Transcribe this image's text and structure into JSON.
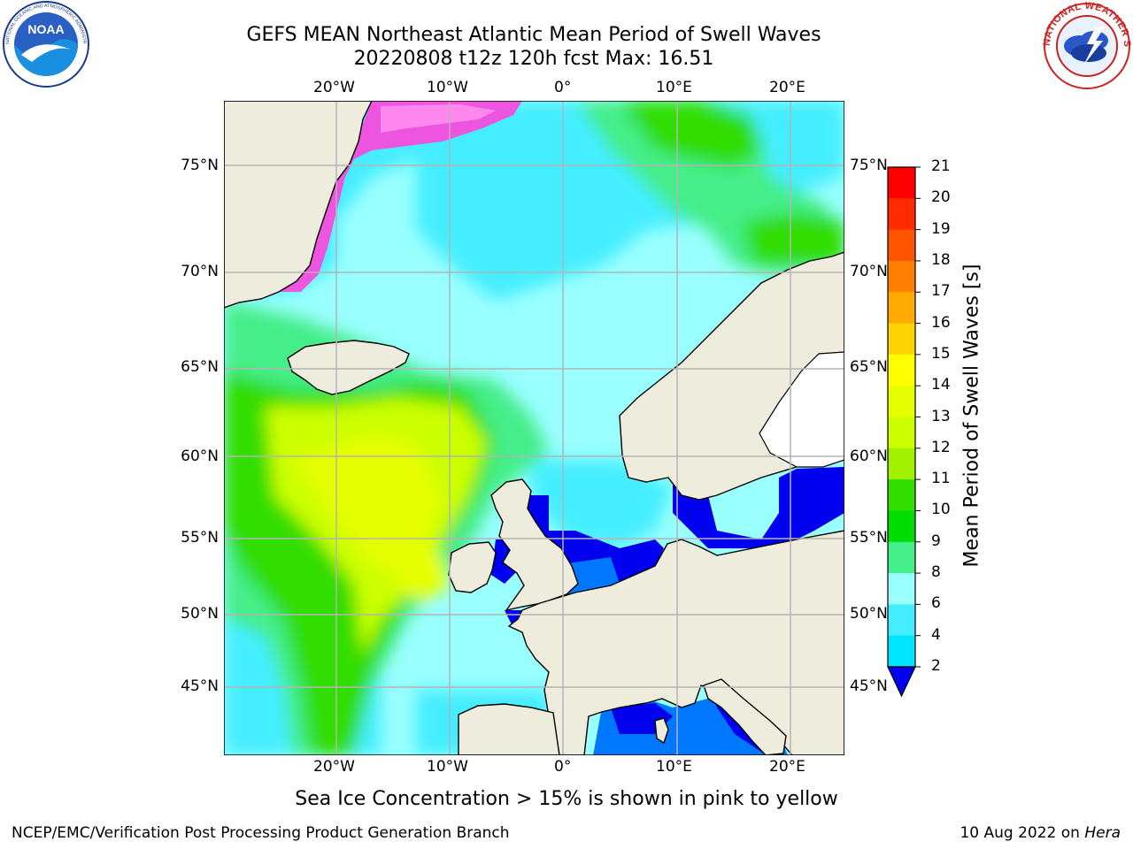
{
  "header": {
    "title_line1": "GEFS MEAN Northeast Atlantic Mean Period of Swell Waves",
    "title_line2": "20220808 t12z 120h fcst   Max: 16.51"
  },
  "logos": {
    "left": {
      "text": "NOAA",
      "ring_text": "NATIONAL OCEANIC AND ATMOSPHERIC ADMINISTRATION • U.S. DEPARTMENT OF COMMERCE"
    },
    "right": {
      "ring_text": "NATIONAL WEATHER SERVICE"
    }
  },
  "map": {
    "lon_labels": [
      "20°W",
      "10°W",
      "0°",
      "10°E",
      "20°E"
    ],
    "lat_labels": [
      "75°N",
      "70°N",
      "65°N",
      "60°N",
      "55°N",
      "50°N",
      "45°N"
    ],
    "colors": {
      "land": "#eeeddd",
      "ice_pink": "#ff44dd",
      "grid": "#b4b4b4"
    }
  },
  "colorbar": {
    "label": "Mean Period of Swell Waves [s]",
    "ticks": [
      "21",
      "20",
      "19",
      "18",
      "17",
      "16",
      "15",
      "14",
      "13",
      "12",
      "11",
      "10",
      "9",
      "8",
      "6",
      "4",
      "2"
    ],
    "colors": [
      "#ff0000",
      "#ff2a00",
      "#ff5500",
      "#ff7f00",
      "#ffaa00",
      "#ffd400",
      "#ffff00",
      "#e5ff00",
      "#ccff00",
      "#a0f000",
      "#33dd00",
      "#00dd00",
      "#44ee88",
      "#99ffff",
      "#44eeff",
      "#00e5ff",
      "#0077ff",
      "#0000ee"
    ]
  },
  "note": "Sea Ice Concentration > 15% is shown in pink to yellow",
  "footer": {
    "left": "NCEP/EMC/Verification Post Processing Product Generation Branch",
    "date": "10 Aug 2022 on ",
    "machine": "Hera"
  }
}
